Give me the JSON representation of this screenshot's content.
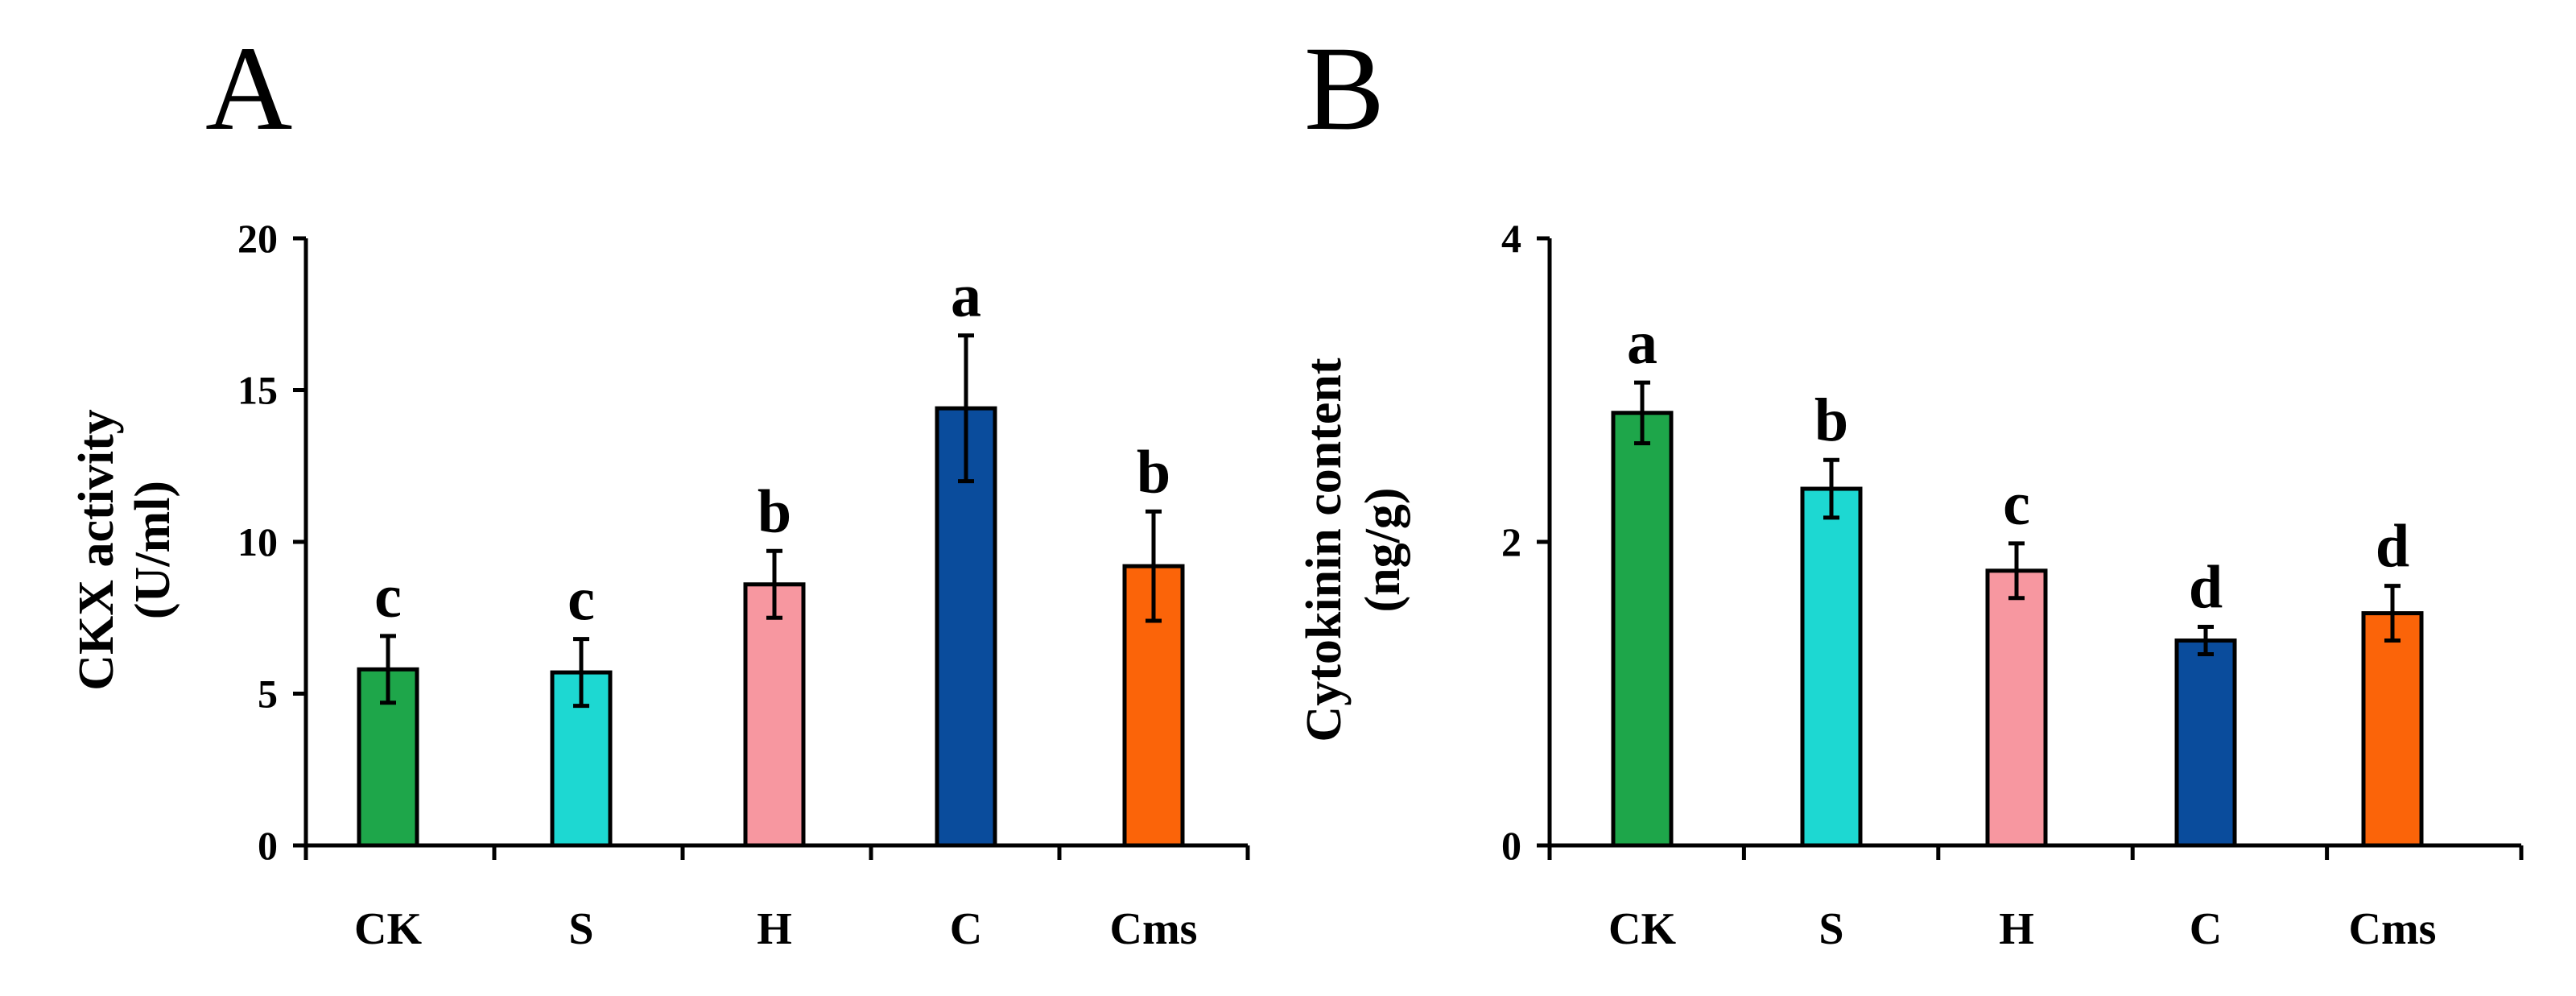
{
  "chart_data": [
    {
      "type": "bar",
      "panel": "A",
      "title": "",
      "xlabel": "",
      "ylabel": [
        "CKX activity",
        "(U/ml)"
      ],
      "ylim": [
        0,
        20
      ],
      "yticks": [
        0,
        5,
        10,
        15,
        20
      ],
      "categories": [
        "CK",
        "S",
        "H",
        "C",
        "Cms"
      ],
      "values": [
        5.8,
        5.7,
        8.6,
        14.4,
        9.2
      ],
      "errors": [
        1.1,
        1.1,
        1.1,
        2.4,
        1.8
      ],
      "significance": [
        "c",
        "c",
        "b",
        "a",
        "b"
      ],
      "colors": [
        "#1ea64a",
        "#1dd8d2",
        "#f797a0",
        "#0a4c9c",
        "#fb6409"
      ]
    },
    {
      "type": "bar",
      "panel": "B",
      "title": "",
      "xlabel": "",
      "ylabel": [
        "Cytokinin content",
        "(ng/g)"
      ],
      "ylim": [
        0,
        4
      ],
      "yticks": [
        0,
        2,
        4
      ],
      "categories": [
        "CK",
        "S",
        "H",
        "C",
        "Cms"
      ],
      "values": [
        2.85,
        2.35,
        1.81,
        1.35,
        1.53
      ],
      "errors": [
        0.2,
        0.19,
        0.18,
        0.09,
        0.18
      ],
      "significance": [
        "a",
        "b",
        "c",
        "d",
        "d"
      ],
      "colors": [
        "#1ea64a",
        "#1dd8d2",
        "#f797a0",
        "#0a4c9c",
        "#fb6409"
      ]
    }
  ]
}
